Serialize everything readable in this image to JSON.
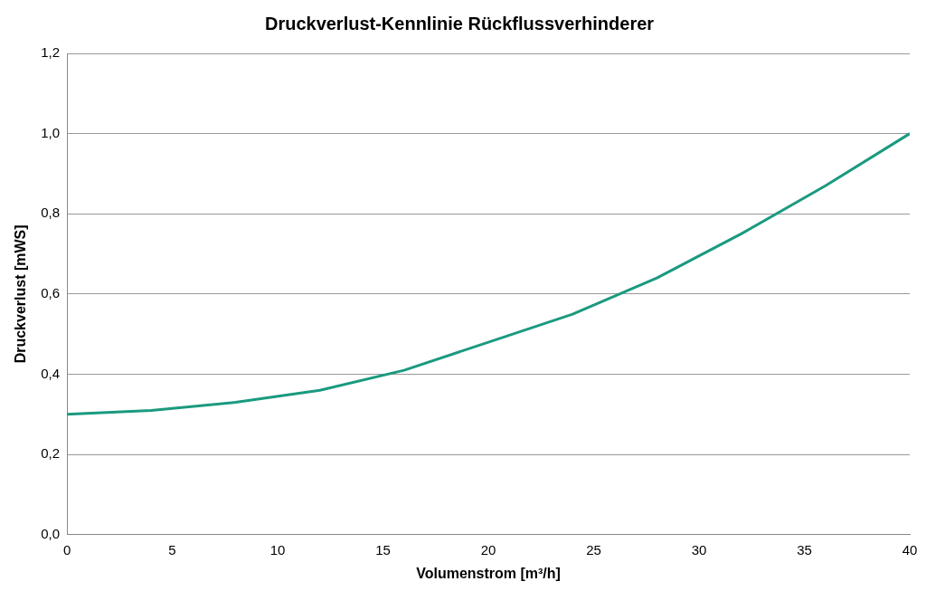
{
  "chart_data": {
    "type": "line",
    "title": "Druckverlust-Kennlinie Rückflussverhinderer",
    "xlabel": "Volumenstrom [m³/h]",
    "ylabel": "Druckverlust [mWS]",
    "x": [
      0,
      4,
      8,
      12,
      16,
      20,
      24,
      28,
      32,
      36,
      40
    ],
    "series": [
      {
        "color": "#1a9a7f",
        "values": [
          0.3,
          0.31,
          0.33,
          0.36,
          0.41,
          0.48,
          0.55,
          0.64,
          0.75,
          0.87,
          1.0
        ]
      }
    ],
    "xlim": [
      0,
      40
    ],
    "xticks": [
      0,
      5,
      10,
      15,
      20,
      25,
      30,
      35,
      40
    ],
    "ylim": [
      0,
      1.2
    ],
    "yticks": [
      {
        "value": 0,
        "label": "0,0"
      },
      {
        "value": 0.2,
        "label": "0,2"
      },
      {
        "value": 0.4,
        "label": "0,4"
      },
      {
        "value": 0.6,
        "label": "0,6"
      },
      {
        "value": 0.8,
        "label": "0,8"
      },
      {
        "value": 1.0,
        "label": "1,0"
      },
      {
        "value": 1.2,
        "label": "1,2"
      }
    ],
    "grid": "y",
    "legend": false,
    "marker": "none",
    "line_style": "solid"
  }
}
